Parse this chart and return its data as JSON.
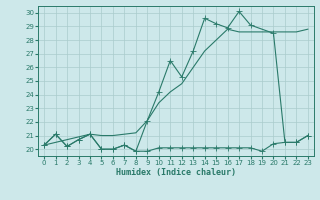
{
  "xlabel": "Humidex (Indice chaleur)",
  "background_color": "#cde8ea",
  "grid_color": "#aacccc",
  "line_color": "#2a7a6a",
  "xlim_min": -0.5,
  "xlim_max": 23.5,
  "ylim_min": 19.5,
  "ylim_max": 30.5,
  "yticks": [
    20,
    21,
    22,
    23,
    24,
    25,
    26,
    27,
    28,
    29,
    30
  ],
  "xticks": [
    0,
    1,
    2,
    3,
    4,
    5,
    6,
    7,
    8,
    9,
    10,
    11,
    12,
    13,
    14,
    15,
    16,
    17,
    18,
    19,
    20,
    21,
    22,
    23
  ],
  "s1_x": [
    0,
    1,
    2,
    3,
    4,
    5,
    6,
    7,
    8,
    9,
    10,
    11,
    12,
    13,
    14,
    15,
    16,
    17,
    18,
    19,
    20,
    21,
    22,
    23
  ],
  "s1_y": [
    20.3,
    21.1,
    20.2,
    20.7,
    21.1,
    20.0,
    20.0,
    20.3,
    19.85,
    19.85,
    20.1,
    20.1,
    20.1,
    20.1,
    20.1,
    20.1,
    20.1,
    20.1,
    20.1,
    19.85,
    20.4,
    20.5,
    20.5,
    21.0
  ],
  "s2_x": [
    0,
    1,
    2,
    3,
    4,
    5,
    6,
    7,
    8,
    9,
    10,
    11,
    12,
    13,
    14,
    15,
    16,
    17,
    18,
    20,
    21,
    22,
    23
  ],
  "s2_y": [
    20.3,
    21.1,
    20.2,
    20.7,
    21.1,
    20.0,
    20.0,
    20.3,
    19.85,
    22.1,
    24.2,
    26.5,
    25.3,
    27.2,
    29.6,
    29.2,
    28.9,
    30.1,
    29.1,
    28.5,
    20.5,
    20.5,
    21.0
  ],
  "s3_x": [
    0,
    1,
    2,
    3,
    4,
    5,
    6,
    7,
    8,
    9,
    10,
    11,
    12,
    13,
    14,
    15,
    16,
    17,
    18,
    19,
    20,
    21,
    22,
    23
  ],
  "s3_y": [
    20.3,
    20.5,
    20.7,
    20.9,
    21.1,
    21.0,
    21.0,
    21.1,
    21.2,
    22.1,
    23.4,
    24.2,
    24.8,
    26.0,
    27.2,
    28.0,
    28.8,
    28.6,
    28.6,
    28.6,
    28.6,
    28.6,
    28.6,
    28.8
  ]
}
